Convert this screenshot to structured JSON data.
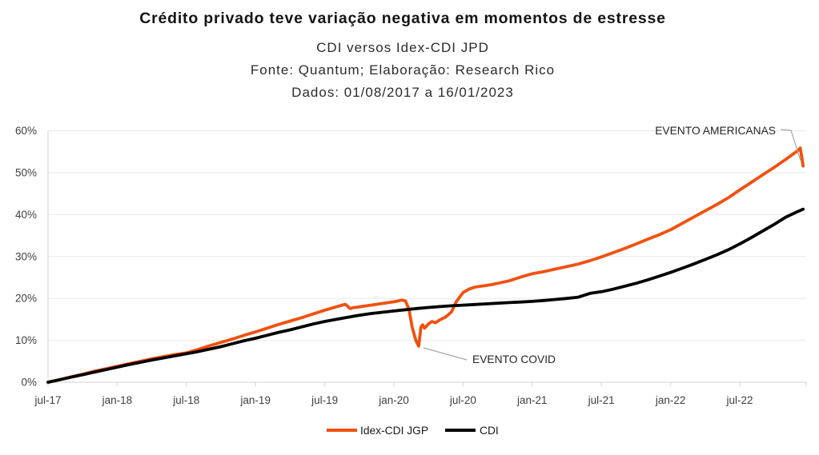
{
  "header": {
    "title": "Crédito privado teve variação negativa em momentos de estresse",
    "subtitle1": "CDI versos Idex-CDI JPD",
    "subtitle2": "Fonte: Quantum; Elaboração: Research Rico",
    "subtitle3": "Dados: 01/08/2017 a 16/01/2023"
  },
  "chart_data": {
    "type": "line",
    "title": "Crédito privado teve variação negativa em momentos de estresse",
    "subtitle": [
      "CDI versos Idex-CDI JPD",
      "Fonte: Quantum; Elaboração: Research Rico",
      "Dados: 01/08/2017 a 16/01/2023"
    ],
    "x_unit": "months since jul-2017",
    "x_ticks": [
      "jul-17",
      "jan-18",
      "jul-18",
      "jan-19",
      "jul-19",
      "jan-20",
      "jul-20",
      "jan-21",
      "jul-21",
      "jan-22",
      "jul-22"
    ],
    "x_tick_month_step": 6,
    "y_ticks": [
      "0%",
      "10%",
      "20%",
      "30%",
      "40%",
      "50%",
      "60%"
    ],
    "ylim": [
      0,
      60
    ],
    "grid": "horizontal",
    "legend_position": "bottom-center",
    "colors": {
      "gridline": "#e9e9e9",
      "axis": "#d9d9d9",
      "leader": "#a6a6a6"
    },
    "series": [
      {
        "name": "Idex-CDI JGP",
        "color": "#F2500F",
        "points": [
          [
            0,
            0
          ],
          [
            1,
            0.6
          ],
          [
            2,
            1.3
          ],
          [
            3,
            1.9
          ],
          [
            4,
            2.6
          ],
          [
            5,
            3.2
          ],
          [
            6,
            3.8
          ],
          [
            7,
            4.4
          ],
          [
            8,
            5.0
          ],
          [
            9,
            5.6
          ],
          [
            10,
            6.1
          ],
          [
            11,
            6.6
          ],
          [
            12,
            7.0
          ],
          [
            13,
            7.8
          ],
          [
            14,
            8.7
          ],
          [
            15,
            9.5
          ],
          [
            16,
            10.3
          ],
          [
            17,
            11.2
          ],
          [
            18,
            12.0
          ],
          [
            19,
            12.9
          ],
          [
            20,
            13.8
          ],
          [
            21,
            14.6
          ],
          [
            22,
            15.4
          ],
          [
            23,
            16.3
          ],
          [
            24,
            17.2
          ],
          [
            25,
            18.0
          ],
          [
            25.8,
            18.6
          ],
          [
            26.2,
            17.6
          ],
          [
            26.5,
            17.8
          ],
          [
            27,
            18.0
          ],
          [
            28,
            18.4
          ],
          [
            29,
            18.8
          ],
          [
            30,
            19.2
          ],
          [
            30.7,
            19.6
          ],
          [
            31,
            19.4
          ],
          [
            31.3,
            17.5
          ],
          [
            31.6,
            13.0
          ],
          [
            31.9,
            10.0
          ],
          [
            32.15,
            8.6
          ],
          [
            32.35,
            13.2
          ],
          [
            32.5,
            13.7
          ],
          [
            32.65,
            12.9
          ],
          [
            33,
            13.9
          ],
          [
            33.3,
            14.5
          ],
          [
            33.6,
            14.2
          ],
          [
            34,
            14.9
          ],
          [
            34.5,
            15.6
          ],
          [
            35,
            16.8
          ],
          [
            35.4,
            19.2
          ],
          [
            36,
            21.4
          ],
          [
            36.5,
            22.2
          ],
          [
            37,
            22.7
          ],
          [
            37.5,
            22.9
          ],
          [
            38,
            23.1
          ],
          [
            38.5,
            23.3
          ],
          [
            39,
            23.6
          ],
          [
            40,
            24.2
          ],
          [
            41,
            25.1
          ],
          [
            42,
            25.9
          ],
          [
            43,
            26.4
          ],
          [
            44,
            27.0
          ],
          [
            45,
            27.6
          ],
          [
            46,
            28.2
          ],
          [
            47,
            29.0
          ],
          [
            48,
            29.9
          ],
          [
            49,
            30.9
          ],
          [
            50,
            31.9
          ],
          [
            51,
            33.0
          ],
          [
            52,
            34.1
          ],
          [
            53,
            35.2
          ],
          [
            54,
            36.4
          ],
          [
            55,
            37.9
          ],
          [
            56,
            39.4
          ],
          [
            57,
            40.9
          ],
          [
            58,
            42.4
          ],
          [
            59,
            44.0
          ],
          [
            60,
            45.9
          ],
          [
            61,
            47.7
          ],
          [
            62,
            49.5
          ],
          [
            63,
            51.3
          ],
          [
            64,
            53.2
          ],
          [
            65,
            55.2
          ],
          [
            65.25,
            55.9
          ],
          [
            65.5,
            51.6
          ]
        ]
      },
      {
        "name": "CDI",
        "color": "#000000",
        "points": [
          [
            0,
            0
          ],
          [
            1,
            0.6
          ],
          [
            2,
            1.2
          ],
          [
            3,
            1.8
          ],
          [
            4,
            2.4
          ],
          [
            5,
            3.0
          ],
          [
            6,
            3.6
          ],
          [
            7,
            4.2
          ],
          [
            8,
            4.75
          ],
          [
            9,
            5.3
          ],
          [
            10,
            5.8
          ],
          [
            11,
            6.3
          ],
          [
            12,
            6.8
          ],
          [
            13,
            7.3
          ],
          [
            14,
            7.9
          ],
          [
            15,
            8.5
          ],
          [
            16,
            9.2
          ],
          [
            17,
            9.9
          ],
          [
            18,
            10.5
          ],
          [
            19,
            11.2
          ],
          [
            20,
            11.9
          ],
          [
            21,
            12.5
          ],
          [
            22,
            13.2
          ],
          [
            23,
            13.9
          ],
          [
            24,
            14.5
          ],
          [
            25,
            15.0
          ],
          [
            26,
            15.5
          ],
          [
            27,
            16.0
          ],
          [
            28,
            16.4
          ],
          [
            29,
            16.7
          ],
          [
            30,
            17.0
          ],
          [
            31,
            17.3
          ],
          [
            32,
            17.6
          ],
          [
            33,
            17.85
          ],
          [
            34,
            18.05
          ],
          [
            35,
            18.25
          ],
          [
            36,
            18.4
          ],
          [
            37,
            18.55
          ],
          [
            38,
            18.7
          ],
          [
            39,
            18.85
          ],
          [
            40,
            19.0
          ],
          [
            41,
            19.15
          ],
          [
            42,
            19.3
          ],
          [
            43,
            19.5
          ],
          [
            44,
            19.75
          ],
          [
            45,
            20.0
          ],
          [
            46,
            20.3
          ],
          [
            47,
            21.2
          ],
          [
            48,
            21.6
          ],
          [
            49,
            22.2
          ],
          [
            50,
            22.9
          ],
          [
            51,
            23.6
          ],
          [
            52,
            24.4
          ],
          [
            53,
            25.3
          ],
          [
            54,
            26.2
          ],
          [
            55,
            27.2
          ],
          [
            56,
            28.2
          ],
          [
            57,
            29.3
          ],
          [
            58,
            30.4
          ],
          [
            59,
            31.6
          ],
          [
            60,
            33.0
          ],
          [
            61,
            34.5
          ],
          [
            62,
            36.1
          ],
          [
            63,
            37.7
          ],
          [
            64,
            39.4
          ],
          [
            65,
            40.7
          ],
          [
            65.5,
            41.3
          ]
        ]
      }
    ],
    "annotations": [
      {
        "id": "evento-americanas",
        "text": "EVENTO AMERICANAS",
        "t": 65.25,
        "pct": 55.9
      },
      {
        "id": "evento-covid",
        "text": "EVENTO COVID",
        "t": 32.15,
        "pct": 8.6
      }
    ]
  }
}
